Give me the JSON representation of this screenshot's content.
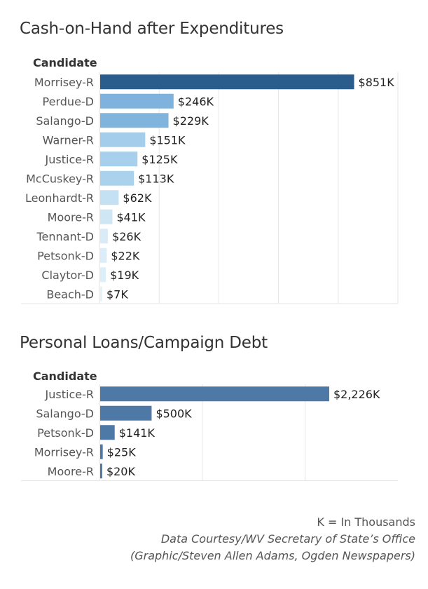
{
  "chart_data": [
    {
      "type": "bar",
      "orientation": "horizontal",
      "title": "Cash-on-Hand after Expenditures",
      "column_header": "Candidate",
      "categories": [
        "Morrisey-R",
        "Perdue-D",
        "Salango-D",
        "Warner-R",
        "Justice-R",
        "McCuskey-R",
        "Leonhardt-R",
        "Moore-R",
        "Tennant-D",
        "Petsonk-D",
        "Claytor-D",
        "Beach-D"
      ],
      "values": [
        851,
        246,
        229,
        151,
        125,
        113,
        62,
        41,
        26,
        22,
        19,
        7
      ],
      "value_labels": [
        "$851K",
        "$246K",
        "$229K",
        "$151K",
        "$125K",
        "$113K",
        "$62K",
        "$41K",
        "$26K",
        "$22K",
        "$19K",
        "$7K"
      ],
      "xlim": [
        0,
        1000
      ],
      "grid": true,
      "colors": [
        "#2b5d8c",
        "#7fb2dc",
        "#80b4dd",
        "#a3cdea",
        "#a8d0ec",
        "#abd2ed",
        "#c4e1f3",
        "#cfe6f5",
        "#d8ebf7",
        "#daedf8",
        "#dceef8",
        "#e4f2fa"
      ]
    },
    {
      "type": "bar",
      "orientation": "horizontal",
      "title": "Personal Loans/Campaign Debt",
      "column_header": "Candidate",
      "categories": [
        "Justice-R",
        "Salango-D",
        "Petsonk-D",
        "Morrisey-R",
        "Moore-R"
      ],
      "values": [
        2226,
        500,
        141,
        25,
        20
      ],
      "value_labels": [
        "$2,226K",
        "$500K",
        "$141K",
        "$25K",
        "$20K"
      ],
      "xlim": [
        0,
        2900
      ],
      "grid": true,
      "colors": [
        "#4e79a7",
        "#4e79a7",
        "#4e79a7",
        "#4e79a7",
        "#4e79a7"
      ]
    }
  ],
  "footer": {
    "legend_note": "K = In Thousands",
    "source": "Data Courtesy/WV Secretary of State’s Office",
    "credit": "(Graphic/Steven Allen Adams, Ogden Newspapers)"
  }
}
